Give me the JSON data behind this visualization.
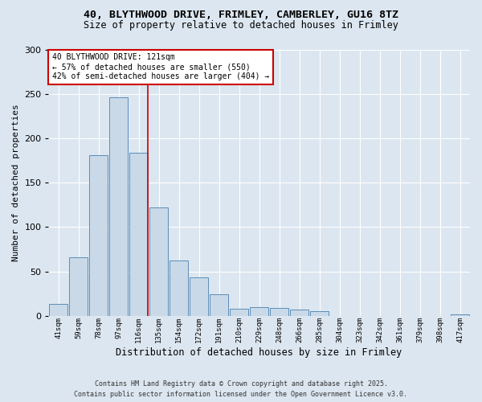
{
  "title_line1": "40, BLYTHWOOD DRIVE, FRIMLEY, CAMBERLEY, GU16 8TZ",
  "title_line2": "Size of property relative to detached houses in Frimley",
  "xlabel": "Distribution of detached houses by size in Frimley",
  "ylabel": "Number of detached properties",
  "categories": [
    "41sqm",
    "59sqm",
    "78sqm",
    "97sqm",
    "116sqm",
    "135sqm",
    "154sqm",
    "172sqm",
    "191sqm",
    "210sqm",
    "229sqm",
    "248sqm",
    "266sqm",
    "285sqm",
    "304sqm",
    "323sqm",
    "342sqm",
    "361sqm",
    "379sqm",
    "398sqm",
    "417sqm"
  ],
  "values": [
    13,
    66,
    181,
    246,
    184,
    122,
    62,
    43,
    24,
    8,
    10,
    9,
    7,
    5,
    0,
    0,
    0,
    0,
    0,
    0,
    2
  ],
  "bar_color": "#c9d9e8",
  "bar_edge_color": "#5b8db8",
  "property_bin_index": 4,
  "redline_label": "40 BLYTHWOOD DRIVE: 121sqm",
  "annotation_line1": "← 57% of detached houses are smaller (550)",
  "annotation_line2": "42% of semi-detached houses are larger (404) →",
  "annotation_box_color": "#ffffff",
  "annotation_box_edge": "#cc0000",
  "redline_color": "#cc0000",
  "ylim": [
    0,
    300
  ],
  "yticks": [
    0,
    50,
    100,
    150,
    200,
    250,
    300
  ],
  "footer_line1": "Contains HM Land Registry data © Crown copyright and database right 2025.",
  "footer_line2": "Contains public sector information licensed under the Open Government Licence v3.0.",
  "background_color": "#dce6f0"
}
